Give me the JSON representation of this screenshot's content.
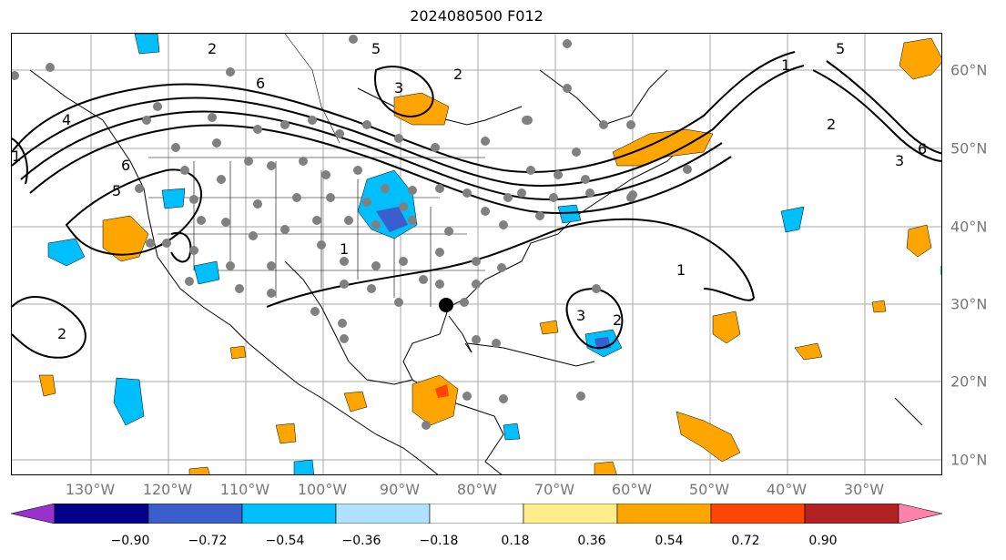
{
  "title": "2024080500 F012",
  "lon_labels": [
    "130°W",
    "120°W",
    "110°W",
    "100°W",
    "90°W",
    "80°W",
    "70°W",
    "60°W",
    "50°W",
    "40°W",
    "30°W"
  ],
  "lat_labels": [
    "60°N",
    "50°N",
    "40°N",
    "30°N",
    "20°N",
    "10°N"
  ],
  "contour_labels": [
    "2",
    "6",
    "1",
    "5",
    "6",
    "4",
    "5",
    "3",
    "2",
    "1",
    "1",
    "5",
    "2",
    "6",
    "3",
    "1",
    "3",
    "2",
    "2"
  ],
  "colorbar": {
    "ticks": [
      "−0.90",
      "−0.72",
      "−0.54",
      "−0.36",
      "−0.18",
      "0.18",
      "0.36",
      "0.54",
      "0.72",
      "0.90"
    ],
    "colors": [
      "#9932cc",
      "#00008b",
      "#3a5fcd",
      "#00bfff",
      "#b0e2ff",
      "#ffffff",
      "#ffec8b",
      "#ffa500",
      "#ff4500",
      "#b22222",
      "#ff82ab"
    ]
  },
  "station_count_marker": "gray dots mark observation stations"
}
